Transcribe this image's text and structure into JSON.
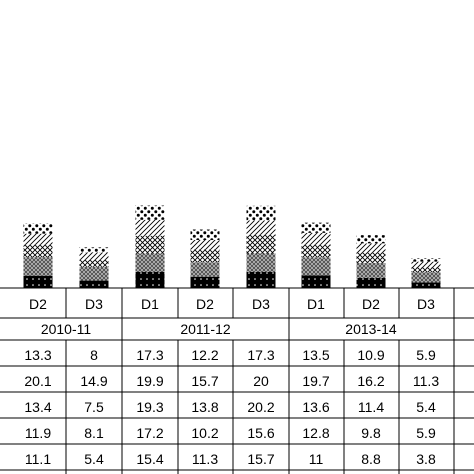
{
  "chart_data": {
    "type": "bar",
    "stacked": true,
    "groups": [
      {
        "label": "2010-11",
        "categories": [
          "D2",
          "D3"
        ]
      },
      {
        "label": "2011-12",
        "categories": [
          "D1",
          "D2",
          "D3"
        ]
      },
      {
        "label": "2013-14",
        "categories": [
          "D1",
          "D2",
          "D3"
        ]
      }
    ],
    "categories": [
      "D2",
      "D3",
      "D1",
      "D2",
      "D3",
      "D1",
      "D2",
      "D3"
    ],
    "series": [
      {
        "values": [
          13.3,
          8,
          17.3,
          12.2,
          17.3,
          13.5,
          10.9,
          5.9
        ]
      },
      {
        "values": [
          20.1,
          14.9,
          19.9,
          15.7,
          20,
          19.7,
          16.2,
          11.3
        ]
      },
      {
        "values": [
          13.4,
          7.5,
          19.3,
          13.8,
          20.2,
          13.6,
          11.4,
          5.4
        ]
      },
      {
        "values": [
          11.9,
          8.1,
          17.2,
          10.2,
          15.6,
          12.8,
          9.8,
          5.9
        ]
      },
      {
        "values": [
          11.1,
          5.4,
          15.4,
          11.3,
          15.7,
          11,
          8.8,
          3.8
        ]
      }
    ],
    "table": {
      "rows": [
        [
          "13.3",
          "8",
          "17.3",
          "12.2",
          "17.3",
          "13.5",
          "10.9",
          "5.9"
        ],
        [
          "20.1",
          "14.9",
          "19.9",
          "15.7",
          "20",
          "19.7",
          "16.2",
          "11.3"
        ],
        [
          "13.4",
          "7.5",
          "19.3",
          "13.8",
          "20.2",
          "13.6",
          "11.4",
          "5.4"
        ],
        [
          "11.9",
          "8.1",
          "17.2",
          "10.2",
          "15.6",
          "12.8",
          "9.8",
          "5.9"
        ],
        [
          "11.1",
          "5.4",
          "15.4",
          "11.3",
          "15.7",
          "11",
          "8.8",
          "3.8"
        ]
      ]
    },
    "title": "",
    "xlabel": "",
    "ylabel": "",
    "legend": "none",
    "grid": false
  }
}
